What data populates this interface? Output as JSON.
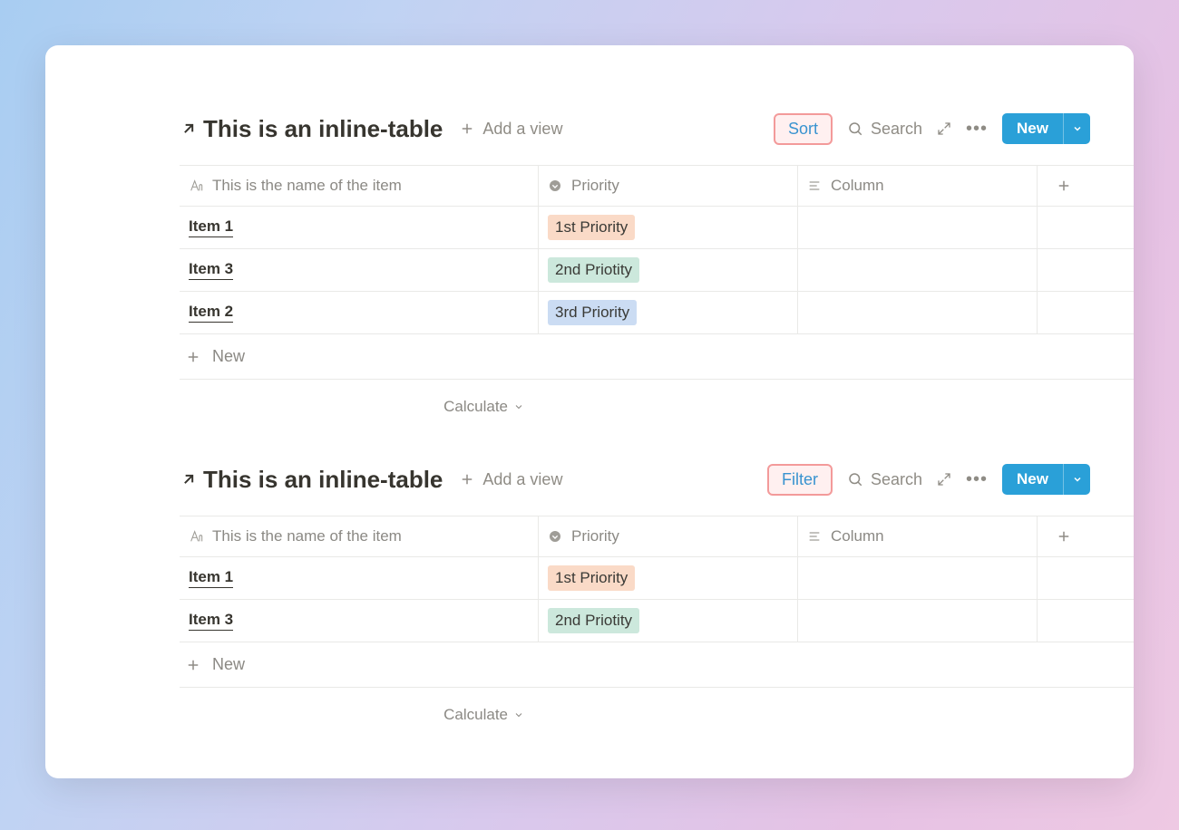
{
  "ui": {
    "add_view_label": "Add a view",
    "search_label": "Search",
    "new_button_label": "New",
    "new_row_label": "New",
    "calculate_label": "Calculate",
    "add_column_plus": "+"
  },
  "colors": {
    "accent_blue": "#2aa0d8",
    "highlight_border": "#f39a9a",
    "highlight_bg": "#fff0f0",
    "text_primary": "#37352f",
    "text_muted": "#8b8984",
    "border": "#e9e9e7",
    "priority_colors": {
      "1st Priority": "#fadac7",
      "2nd Priotity": "#cce8dc",
      "3rd Priority": "#cbdcf3"
    }
  },
  "tables": [
    {
      "title": "This is an inline-table",
      "highlighted_action": "Sort",
      "columns": [
        {
          "label": "This is the name of the item",
          "icon": "text"
        },
        {
          "label": "Priority",
          "icon": "select"
        },
        {
          "label": "Column",
          "icon": "lines"
        }
      ],
      "rows": [
        {
          "name": "Item 1",
          "priority": "1st Priority"
        },
        {
          "name": "Item 3",
          "priority": "2nd Priotity"
        },
        {
          "name": "Item 2",
          "priority": "3rd Priority"
        }
      ]
    },
    {
      "title": "This is an inline-table",
      "highlighted_action": "Filter",
      "columns": [
        {
          "label": "This is the name of the item",
          "icon": "text"
        },
        {
          "label": "Priority",
          "icon": "select"
        },
        {
          "label": "Column",
          "icon": "lines"
        }
      ],
      "rows": [
        {
          "name": "Item 1",
          "priority": "1st Priority"
        },
        {
          "name": "Item 3",
          "priority": "2nd Priotity"
        }
      ]
    }
  ]
}
